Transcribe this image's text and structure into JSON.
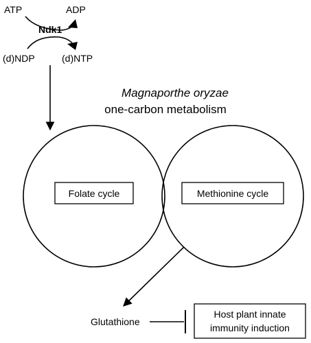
{
  "reaction": {
    "atp": "ATP",
    "adp": "ADP",
    "enzyme": "Ndk1",
    "ndp": "(d)NDP",
    "ntp": "(d)NTP"
  },
  "title": {
    "organism": "Magnaporthe oryzae",
    "process": "one-carbon metabolism"
  },
  "cycles": {
    "folate": "Folate cycle",
    "methionine": "Methionine cycle"
  },
  "output": {
    "product": "Glutathione",
    "target_line1": "Host plant innate",
    "target_line2": "immunity induction"
  },
  "colors": {
    "stroke": "#000000",
    "background": "#ffffff"
  }
}
